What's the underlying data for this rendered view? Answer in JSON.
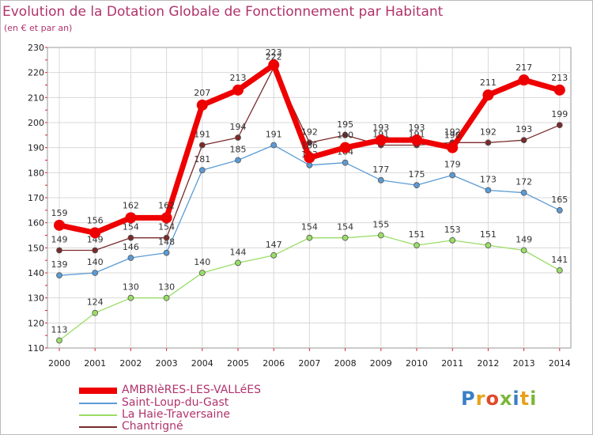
{
  "title": "Evolution de la Dotation Globale de Fonctionnement par Habitant",
  "subtitle": "(en € et par an)",
  "logo": "Proxiti",
  "chart_data": {
    "type": "line",
    "title": "Evolution de la Dotation Globale de Fonctionnement par Habitant",
    "ylabel": "(en € et par an)",
    "xlabel": "",
    "ylim": [
      110,
      230
    ],
    "yticks": [
      110,
      120,
      130,
      140,
      150,
      160,
      170,
      180,
      190,
      200,
      210,
      220,
      230
    ],
    "x": [
      "2000",
      "2001",
      "2002",
      "2003",
      "2004",
      "2005",
      "2006",
      "2007",
      "2008",
      "2009",
      "2010",
      "2011",
      "2012",
      "2013",
      "2014"
    ],
    "grid": true,
    "series": [
      {
        "name": "AMBRIèRES-LES-VALLéES",
        "color": "#ee0000",
        "values": [
          159,
          156,
          162,
          162,
          207,
          213,
          223,
          186,
          190,
          193,
          193,
          190,
          211,
          217,
          213
        ]
      },
      {
        "name": "Saint-Loup-du-Gast",
        "color": "#5b9bd5",
        "values": [
          139,
          140,
          146,
          148,
          181,
          185,
          191,
          183,
          184,
          177,
          175,
          179,
          173,
          172,
          165
        ]
      },
      {
        "name": "La Haie-Traversaine",
        "color": "#99dd66",
        "values": [
          113,
          124,
          130,
          130,
          140,
          144,
          147,
          154,
          154,
          155,
          151,
          153,
          151,
          149,
          141
        ]
      },
      {
        "name": "Chantrigné",
        "color": "#7a2a2a",
        "values": [
          149,
          149,
          154,
          154,
          191,
          194,
          222,
          192,
          195,
          191,
          191,
          192,
          192,
          193,
          199
        ]
      }
    ]
  }
}
